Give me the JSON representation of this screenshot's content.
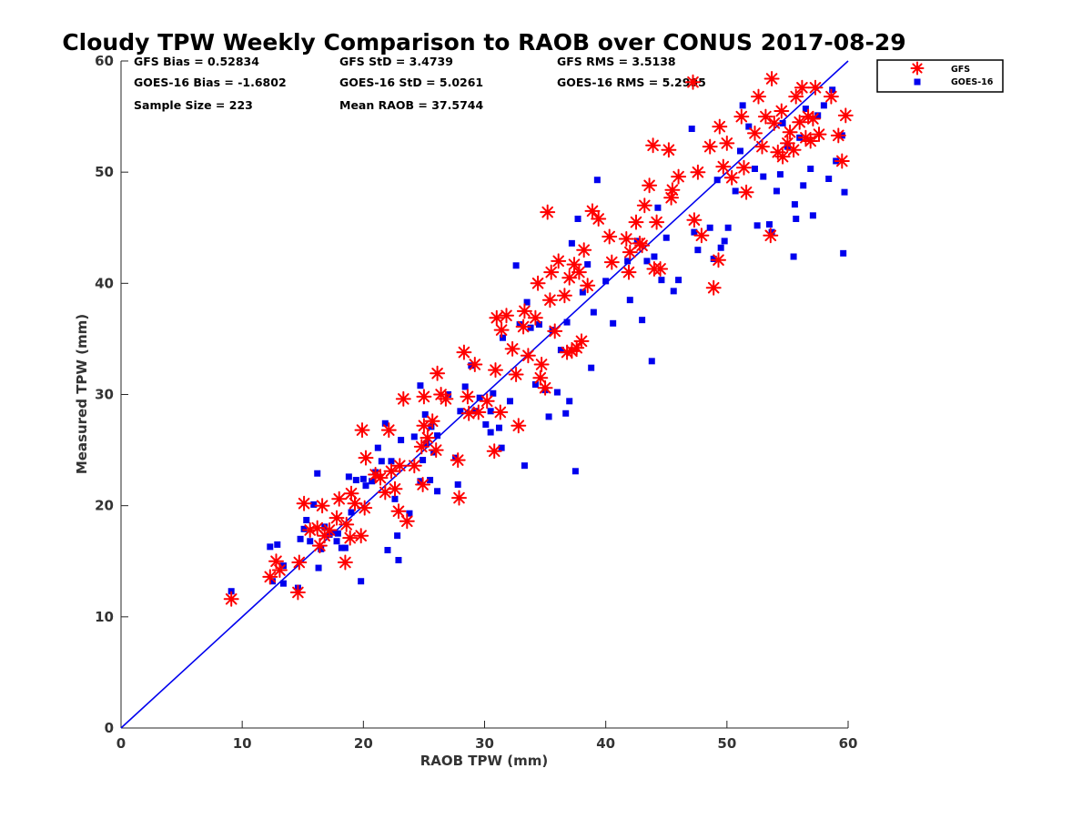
{
  "chart_data": {
    "type": "scatter",
    "title": "Cloudy TPW Weekly Comparison to RAOB over CONUS 2017-08-29",
    "xlabel": "RAOB TPW (mm)",
    "ylabel": "Measured TPW (mm)",
    "xlim": [
      0,
      60
    ],
    "ylim": [
      0,
      60
    ],
    "xticks": [
      "0",
      "10",
      "20",
      "30",
      "40",
      "50",
      "60"
    ],
    "yticks": [
      "0",
      "10",
      "20",
      "30",
      "40",
      "50",
      "60"
    ],
    "grid": false,
    "legend_position": "top-right-outside",
    "reference_line": {
      "type": "one-to-one",
      "color": "#0000ee"
    },
    "stats": [
      "GFS Bias = 0.52834",
      "GFS StD = 3.4739",
      "GFS RMS = 3.5138",
      "GOES-16 Bias = -1.6802",
      "GOES-16 StD = 5.0261",
      "GOES-16 RMS = 5.2995",
      "Sample Size = 223",
      "Mean RAOB = 37.5744"
    ],
    "series": [
      {
        "name": "GFS",
        "marker": "asterisk",
        "color": "#ff0000",
        "points": [
          [
            9.1,
            11.6
          ],
          [
            12.3,
            13.6
          ],
          [
            12.8,
            15.0
          ],
          [
            13.1,
            14.2
          ],
          [
            14.6,
            12.2
          ],
          [
            14.7,
            14.9
          ],
          [
            15.1,
            20.2
          ],
          [
            15.6,
            17.8
          ],
          [
            16.2,
            18.0
          ],
          [
            16.4,
            16.4
          ],
          [
            16.6,
            20.0
          ],
          [
            16.8,
            17.3
          ],
          [
            17.2,
            17.8
          ],
          [
            17.8,
            18.9
          ],
          [
            18.0,
            20.6
          ],
          [
            18.5,
            14.9
          ],
          [
            18.6,
            18.3
          ],
          [
            18.9,
            17.1
          ],
          [
            19.0,
            21.1
          ],
          [
            19.3,
            20.2
          ],
          [
            19.8,
            17.3
          ],
          [
            19.9,
            26.8
          ],
          [
            20.1,
            19.8
          ],
          [
            20.2,
            24.3
          ],
          [
            21.0,
            22.8
          ],
          [
            21.4,
            22.5
          ],
          [
            21.8,
            21.2
          ],
          [
            22.1,
            26.8
          ],
          [
            22.3,
            23.1
          ],
          [
            22.6,
            21.5
          ],
          [
            22.9,
            19.5
          ],
          [
            23.0,
            23.6
          ],
          [
            23.3,
            29.6
          ],
          [
            23.6,
            18.6
          ],
          [
            24.2,
            23.6
          ],
          [
            24.9,
            21.9
          ],
          [
            24.8,
            25.3
          ],
          [
            25.0,
            27.2
          ],
          [
            25.0,
            29.8
          ],
          [
            25.3,
            26.1
          ],
          [
            25.7,
            27.6
          ],
          [
            26.0,
            25.0
          ],
          [
            26.1,
            31.9
          ],
          [
            26.4,
            30.0
          ],
          [
            26.8,
            29.6
          ],
          [
            27.8,
            24.1
          ],
          [
            27.9,
            20.7
          ],
          [
            28.3,
            33.8
          ],
          [
            28.6,
            29.8
          ],
          [
            28.7,
            28.3
          ],
          [
            29.2,
            32.7
          ],
          [
            29.5,
            28.4
          ],
          [
            30.2,
            29.4
          ],
          [
            30.8,
            24.9
          ],
          [
            30.9,
            32.2
          ],
          [
            31.0,
            36.9
          ],
          [
            31.3,
            28.4
          ],
          [
            31.4,
            35.8
          ],
          [
            31.8,
            37.1
          ],
          [
            32.3,
            34.1
          ],
          [
            32.6,
            31.8
          ],
          [
            32.8,
            27.2
          ],
          [
            33.2,
            36.1
          ],
          [
            33.3,
            37.5
          ],
          [
            33.6,
            33.5
          ],
          [
            34.2,
            36.9
          ],
          [
            34.4,
            40.0
          ],
          [
            34.6,
            31.5
          ],
          [
            34.7,
            32.7
          ],
          [
            35.0,
            30.6
          ],
          [
            35.2,
            46.4
          ],
          [
            35.4,
            38.5
          ],
          [
            35.5,
            41.0
          ],
          [
            35.8,
            35.7
          ],
          [
            36.1,
            42.0
          ],
          [
            36.6,
            38.9
          ],
          [
            36.8,
            33.8
          ],
          [
            37.0,
            40.5
          ],
          [
            37.2,
            33.9
          ],
          [
            37.4,
            41.7
          ],
          [
            37.6,
            34.2
          ],
          [
            37.8,
            41.0
          ],
          [
            38.0,
            34.8
          ],
          [
            38.2,
            43.0
          ],
          [
            38.5,
            39.8
          ],
          [
            38.9,
            46.5
          ],
          [
            39.4,
            45.8
          ],
          [
            40.3,
            44.2
          ],
          [
            40.5,
            41.9
          ],
          [
            41.7,
            44.0
          ],
          [
            41.9,
            41.0
          ],
          [
            42.0,
            42.8
          ],
          [
            42.5,
            45.5
          ],
          [
            42.8,
            43.6
          ],
          [
            43.0,
            43.4
          ],
          [
            43.2,
            47.0
          ],
          [
            43.6,
            48.8
          ],
          [
            43.9,
            52.4
          ],
          [
            44.0,
            41.3
          ],
          [
            44.2,
            45.5
          ],
          [
            44.5,
            41.3
          ],
          [
            45.2,
            52.0
          ],
          [
            45.4,
            47.7
          ],
          [
            45.5,
            48.4
          ],
          [
            46.0,
            49.6
          ],
          [
            47.2,
            58.1
          ],
          [
            47.3,
            45.7
          ],
          [
            47.6,
            50.0
          ],
          [
            47.9,
            44.3
          ],
          [
            48.6,
            52.3
          ],
          [
            48.9,
            39.6
          ],
          [
            49.3,
            42.1
          ],
          [
            49.4,
            54.1
          ],
          [
            49.7,
            50.5
          ],
          [
            50.0,
            52.6
          ],
          [
            50.4,
            49.5
          ],
          [
            51.2,
            55.0
          ],
          [
            51.4,
            50.4
          ],
          [
            51.6,
            48.2
          ],
          [
            52.3,
            53.5
          ],
          [
            52.6,
            56.8
          ],
          [
            52.9,
            52.3
          ],
          [
            53.2,
            55.0
          ],
          [
            53.6,
            44.3
          ],
          [
            53.7,
            58.4
          ],
          [
            53.9,
            54.4
          ],
          [
            54.2,
            51.8
          ],
          [
            54.5,
            55.5
          ],
          [
            54.6,
            51.4
          ],
          [
            55.0,
            52.6
          ],
          [
            55.2,
            53.6
          ],
          [
            55.5,
            52.0
          ],
          [
            55.7,
            56.8
          ],
          [
            56.0,
            54.5
          ],
          [
            56.2,
            57.6
          ],
          [
            56.5,
            53.1
          ],
          [
            56.7,
            55.0
          ],
          [
            56.9,
            52.8
          ],
          [
            57.1,
            54.8
          ],
          [
            57.3,
            57.6
          ],
          [
            57.6,
            53.4
          ],
          [
            58.6,
            56.8
          ],
          [
            59.2,
            53.3
          ],
          [
            59.5,
            51.0
          ],
          [
            59.8,
            55.1
          ]
        ]
      },
      {
        "name": "GOES-16",
        "marker": "square",
        "color": "#0000ee",
        "points": [
          [
            9.1,
            12.3
          ],
          [
            12.3,
            16.3
          ],
          [
            12.5,
            13.2
          ],
          [
            12.9,
            16.5
          ],
          [
            13.4,
            13.0
          ],
          [
            13.4,
            14.6
          ],
          [
            14.6,
            12.6
          ],
          [
            14.8,
            17.0
          ],
          [
            15.1,
            17.9
          ],
          [
            15.3,
            18.7
          ],
          [
            15.6,
            16.8
          ],
          [
            15.9,
            20.1
          ],
          [
            16.2,
            22.9
          ],
          [
            16.3,
            14.4
          ],
          [
            16.5,
            16.1
          ],
          [
            16.8,
            18.1
          ],
          [
            17.2,
            17.4
          ],
          [
            17.4,
            17.6
          ],
          [
            17.8,
            16.8
          ],
          [
            17.9,
            17.5
          ],
          [
            18.2,
            16.2
          ],
          [
            18.5,
            16.2
          ],
          [
            18.8,
            22.6
          ],
          [
            19.0,
            19.4
          ],
          [
            19.4,
            22.3
          ],
          [
            19.8,
            13.2
          ],
          [
            20.0,
            22.4
          ],
          [
            20.2,
            21.8
          ],
          [
            20.7,
            22.2
          ],
          [
            21.0,
            23.0
          ],
          [
            21.2,
            25.2
          ],
          [
            21.5,
            24.0
          ],
          [
            21.8,
            27.4
          ],
          [
            22.0,
            16.0
          ],
          [
            22.3,
            24.0
          ],
          [
            22.6,
            20.6
          ],
          [
            22.8,
            17.3
          ],
          [
            22.9,
            15.1
          ],
          [
            23.1,
            25.9
          ],
          [
            23.8,
            19.3
          ],
          [
            24.2,
            26.2
          ],
          [
            24.7,
            22.2
          ],
          [
            24.7,
            30.8
          ],
          [
            24.9,
            24.1
          ],
          [
            25.1,
            28.2
          ],
          [
            25.2,
            25.6
          ],
          [
            25.5,
            22.3
          ],
          [
            25.6,
            27.1
          ],
          [
            25.8,
            24.8
          ],
          [
            26.1,
            26.3
          ],
          [
            26.1,
            21.3
          ],
          [
            27.0,
            30.0
          ],
          [
            27.6,
            24.3
          ],
          [
            27.8,
            21.9
          ],
          [
            28.0,
            28.5
          ],
          [
            28.4,
            30.7
          ],
          [
            28.9,
            32.6
          ],
          [
            29.2,
            28.5
          ],
          [
            29.6,
            29.7
          ],
          [
            30.1,
            27.3
          ],
          [
            30.5,
            26.6
          ],
          [
            30.5,
            28.5
          ],
          [
            30.7,
            30.1
          ],
          [
            31.2,
            27.0
          ],
          [
            31.4,
            25.2
          ],
          [
            31.5,
            35.1
          ],
          [
            32.1,
            29.4
          ],
          [
            32.6,
            41.6
          ],
          [
            32.9,
            36.3
          ],
          [
            33.3,
            23.6
          ],
          [
            33.5,
            38.3
          ],
          [
            33.8,
            36.0
          ],
          [
            34.2,
            30.9
          ],
          [
            34.5,
            36.3
          ],
          [
            35.0,
            30.4
          ],
          [
            35.3,
            28.0
          ],
          [
            35.6,
            35.8
          ],
          [
            36.0,
            30.2
          ],
          [
            36.3,
            34.0
          ],
          [
            36.7,
            28.3
          ],
          [
            36.8,
            36.5
          ],
          [
            37.0,
            29.4
          ],
          [
            37.2,
            43.6
          ],
          [
            37.5,
            23.1
          ],
          [
            37.7,
            45.8
          ],
          [
            38.1,
            39.2
          ],
          [
            38.5,
            41.7
          ],
          [
            38.8,
            32.4
          ],
          [
            39.0,
            37.4
          ],
          [
            39.3,
            49.3
          ],
          [
            40.0,
            40.2
          ],
          [
            40.6,
            36.4
          ],
          [
            41.8,
            42.0
          ],
          [
            42.0,
            38.5
          ],
          [
            42.6,
            43.8
          ],
          [
            43.0,
            36.7
          ],
          [
            43.4,
            42.0
          ],
          [
            43.8,
            33.0
          ],
          [
            44.0,
            42.4
          ],
          [
            44.3,
            46.8
          ],
          [
            44.6,
            40.3
          ],
          [
            45.0,
            44.1
          ],
          [
            45.6,
            39.3
          ],
          [
            46.0,
            40.3
          ],
          [
            47.1,
            53.9
          ],
          [
            47.3,
            44.6
          ],
          [
            47.6,
            43.0
          ],
          [
            48.6,
            45.0
          ],
          [
            48.9,
            42.2
          ],
          [
            49.2,
            49.3
          ],
          [
            49.5,
            43.2
          ],
          [
            49.8,
            43.8
          ],
          [
            50.1,
            45.0
          ],
          [
            50.7,
            48.3
          ],
          [
            51.1,
            51.9
          ],
          [
            51.3,
            56.0
          ],
          [
            51.8,
            54.1
          ],
          [
            52.3,
            50.3
          ],
          [
            52.5,
            45.2
          ],
          [
            53.0,
            49.6
          ],
          [
            53.5,
            45.3
          ],
          [
            53.7,
            44.6
          ],
          [
            54.1,
            48.3
          ],
          [
            54.4,
            49.8
          ],
          [
            54.6,
            54.4
          ],
          [
            55.0,
            52.3
          ],
          [
            55.5,
            42.4
          ],
          [
            55.6,
            47.1
          ],
          [
            55.7,
            45.8
          ],
          [
            56.0,
            53.1
          ],
          [
            56.3,
            48.8
          ],
          [
            56.5,
            55.7
          ],
          [
            56.9,
            50.3
          ],
          [
            57.1,
            46.1
          ],
          [
            57.5,
            55.1
          ],
          [
            58.0,
            56.0
          ],
          [
            58.4,
            49.4
          ],
          [
            58.7,
            57.4
          ],
          [
            59.0,
            51.0
          ],
          [
            59.5,
            53.3
          ],
          [
            59.6,
            42.7
          ],
          [
            59.7,
            48.2
          ]
        ]
      }
    ]
  }
}
